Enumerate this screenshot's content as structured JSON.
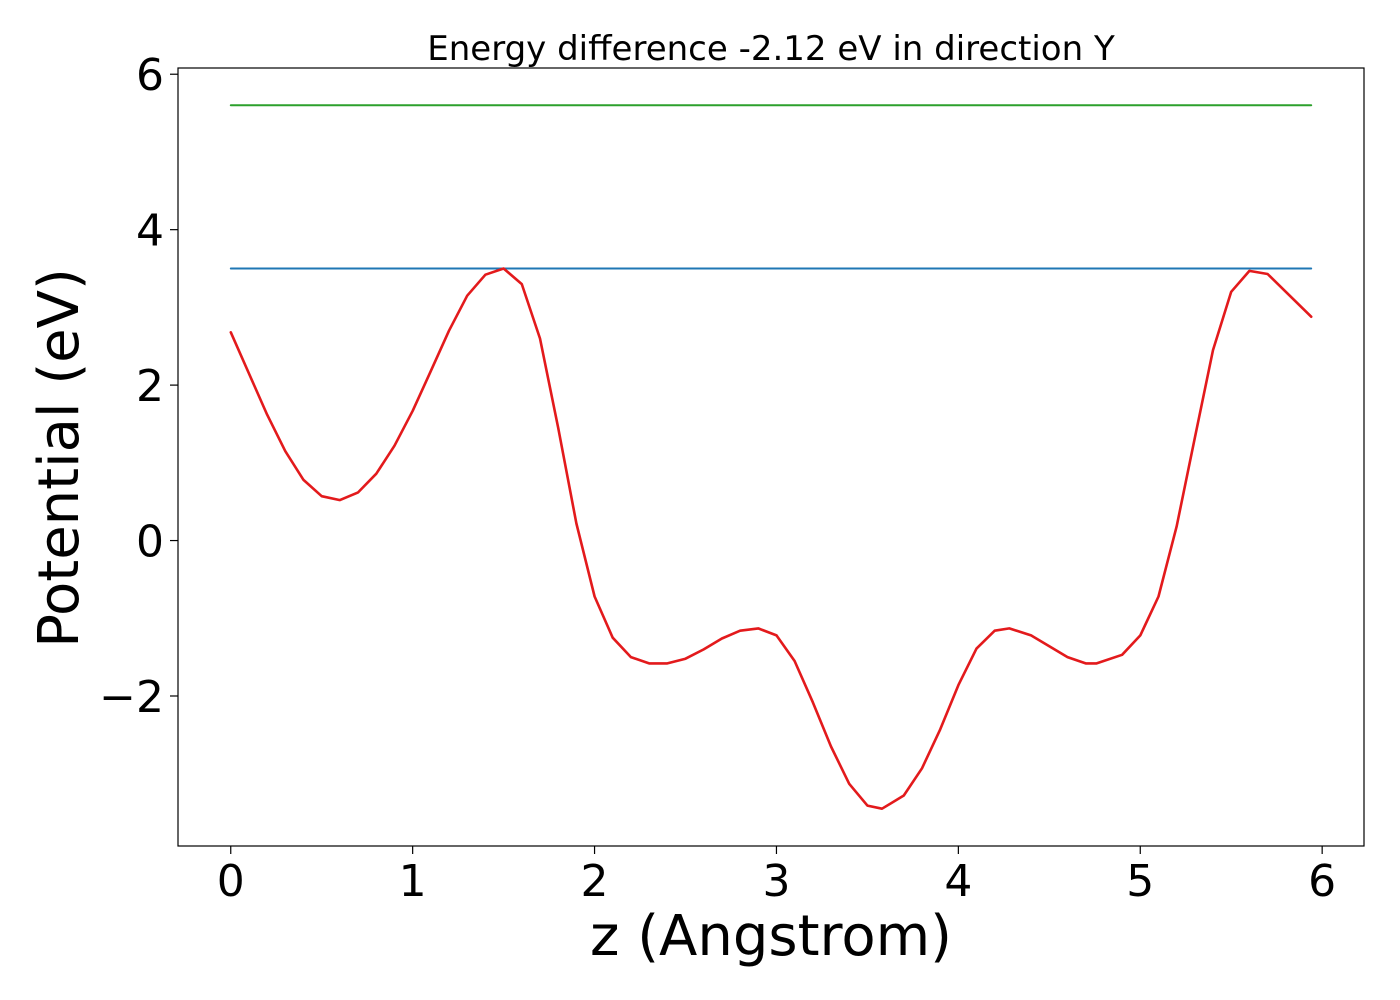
{
  "chart_data": {
    "type": "line",
    "title": "Energy difference -2.12 eV in direction Y",
    "xlabel": "z (Angstrom)",
    "ylabel": "Potential (eV)",
    "xlim": [
      -0.29,
      6.23
    ],
    "ylim": [
      -3.93,
      6.08
    ],
    "x_ticks": [
      0,
      1,
      2,
      3,
      4,
      5,
      6
    ],
    "x_tick_labels": [
      "0",
      "1",
      "2",
      "3",
      "4",
      "5",
      "6"
    ],
    "y_ticks": [
      -2,
      0,
      2,
      4,
      6
    ],
    "y_tick_labels": [
      "−2",
      "0",
      "2",
      "4",
      "6"
    ],
    "grid": false,
    "legend": "none",
    "series": [
      {
        "color": "#2ca02c",
        "x": [
          0,
          5.94
        ],
        "y": [
          5.6,
          5.6
        ]
      },
      {
        "color": "#1f77b4",
        "x": [
          0,
          5.94
        ],
        "y": [
          3.5,
          3.5
        ]
      },
      {
        "color": "#e31a1c",
        "x": [
          0,
          0.1,
          0.2,
          0.3,
          0.4,
          0.5,
          0.6,
          0.7,
          0.8,
          0.9,
          1.0,
          1.1,
          1.2,
          1.3,
          1.4,
          1.5,
          1.6,
          1.7,
          1.8,
          1.9,
          2.0,
          2.1,
          2.2,
          2.3,
          2.4,
          2.5,
          2.6,
          2.7,
          2.8,
          2.9,
          3.0,
          3.1,
          3.2,
          3.3,
          3.4,
          3.5,
          3.58,
          3.7,
          3.8,
          3.9,
          4.0,
          4.1,
          4.2,
          4.28,
          4.4,
          4.5,
          4.6,
          4.7,
          4.76,
          4.9,
          5.0,
          5.1,
          5.2,
          5.3,
          5.4,
          5.5,
          5.6,
          5.7,
          5.8,
          5.94
        ],
        "y": [
          2.68,
          2.15,
          1.62,
          1.15,
          0.78,
          0.57,
          0.52,
          0.62,
          0.86,
          1.22,
          1.67,
          2.18,
          2.7,
          3.15,
          3.42,
          3.5,
          3.3,
          2.6,
          1.45,
          0.22,
          -0.72,
          -1.25,
          -1.5,
          -1.58,
          -1.58,
          -1.52,
          -1.4,
          -1.26,
          -1.16,
          -1.13,
          -1.22,
          -1.55,
          -2.08,
          -2.65,
          -3.13,
          -3.41,
          -3.45,
          -3.28,
          -2.93,
          -2.43,
          -1.86,
          -1.39,
          -1.16,
          -1.13,
          -1.22,
          -1.36,
          -1.5,
          -1.58,
          -1.58,
          -1.47,
          -1.22,
          -0.72,
          0.18,
          1.32,
          2.45,
          3.2,
          3.47,
          3.43,
          3.2,
          2.88
        ]
      }
    ]
  }
}
